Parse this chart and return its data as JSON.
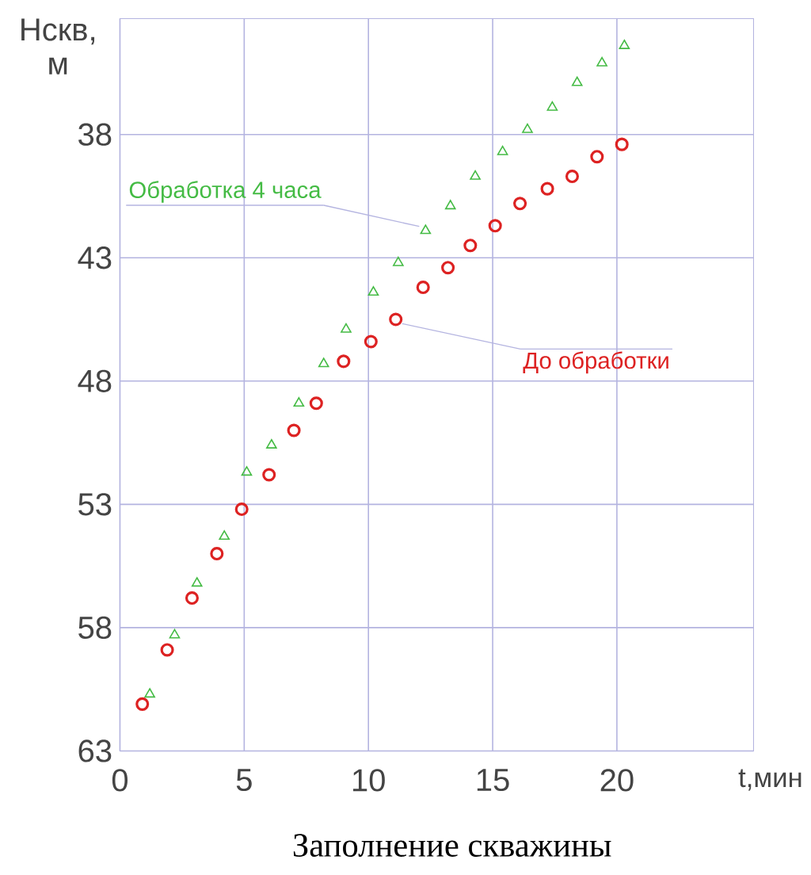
{
  "chart_data": {
    "type": "scatter",
    "title": "Заполнение скважины",
    "xlabel": "t,мин",
    "ylabel": "Нскв, м",
    "xlim": [
      0,
      25.5
    ],
    "xticks": [
      0,
      5,
      10,
      15,
      20
    ],
    "ylim": [
      63,
      33.3
    ],
    "yticks": [
      38,
      43,
      48,
      53,
      58,
      63
    ],
    "grid": true,
    "legend": false,
    "series": [
      {
        "name": "Обработка 4 часа",
        "color": "#44bb44",
        "marker": "triangle",
        "x": [
          1.2,
          2.2,
          3.1,
          4.2,
          5.1,
          6.1,
          7.2,
          8.2,
          9.1,
          10.2,
          11.2,
          12.3,
          13.3,
          14.3,
          15.4,
          16.4,
          17.4,
          18.4,
          19.4,
          20.3
        ],
        "values": [
          60.7,
          58.3,
          56.2,
          54.3,
          51.7,
          50.6,
          48.9,
          47.3,
          45.9,
          44.4,
          43.2,
          41.9,
          40.9,
          39.7,
          38.7,
          37.8,
          36.9,
          35.9,
          35.1,
          34.4
        ]
      },
      {
        "name": "До обработки",
        "color": "#dd2222",
        "marker": "circle",
        "x": [
          0.9,
          1.9,
          2.9,
          3.9,
          4.9,
          6.0,
          7.0,
          7.9,
          9.0,
          10.1,
          11.1,
          12.2,
          13.2,
          14.1,
          15.1,
          16.1,
          17.2,
          18.2,
          19.2,
          20.2
        ],
        "values": [
          61.1,
          58.9,
          56.8,
          55.0,
          53.2,
          51.8,
          50.0,
          48.9,
          47.2,
          46.4,
          45.5,
          44.2,
          43.4,
          42.5,
          41.7,
          40.8,
          40.2,
          39.7,
          38.9,
          38.4
        ]
      }
    ]
  }
}
